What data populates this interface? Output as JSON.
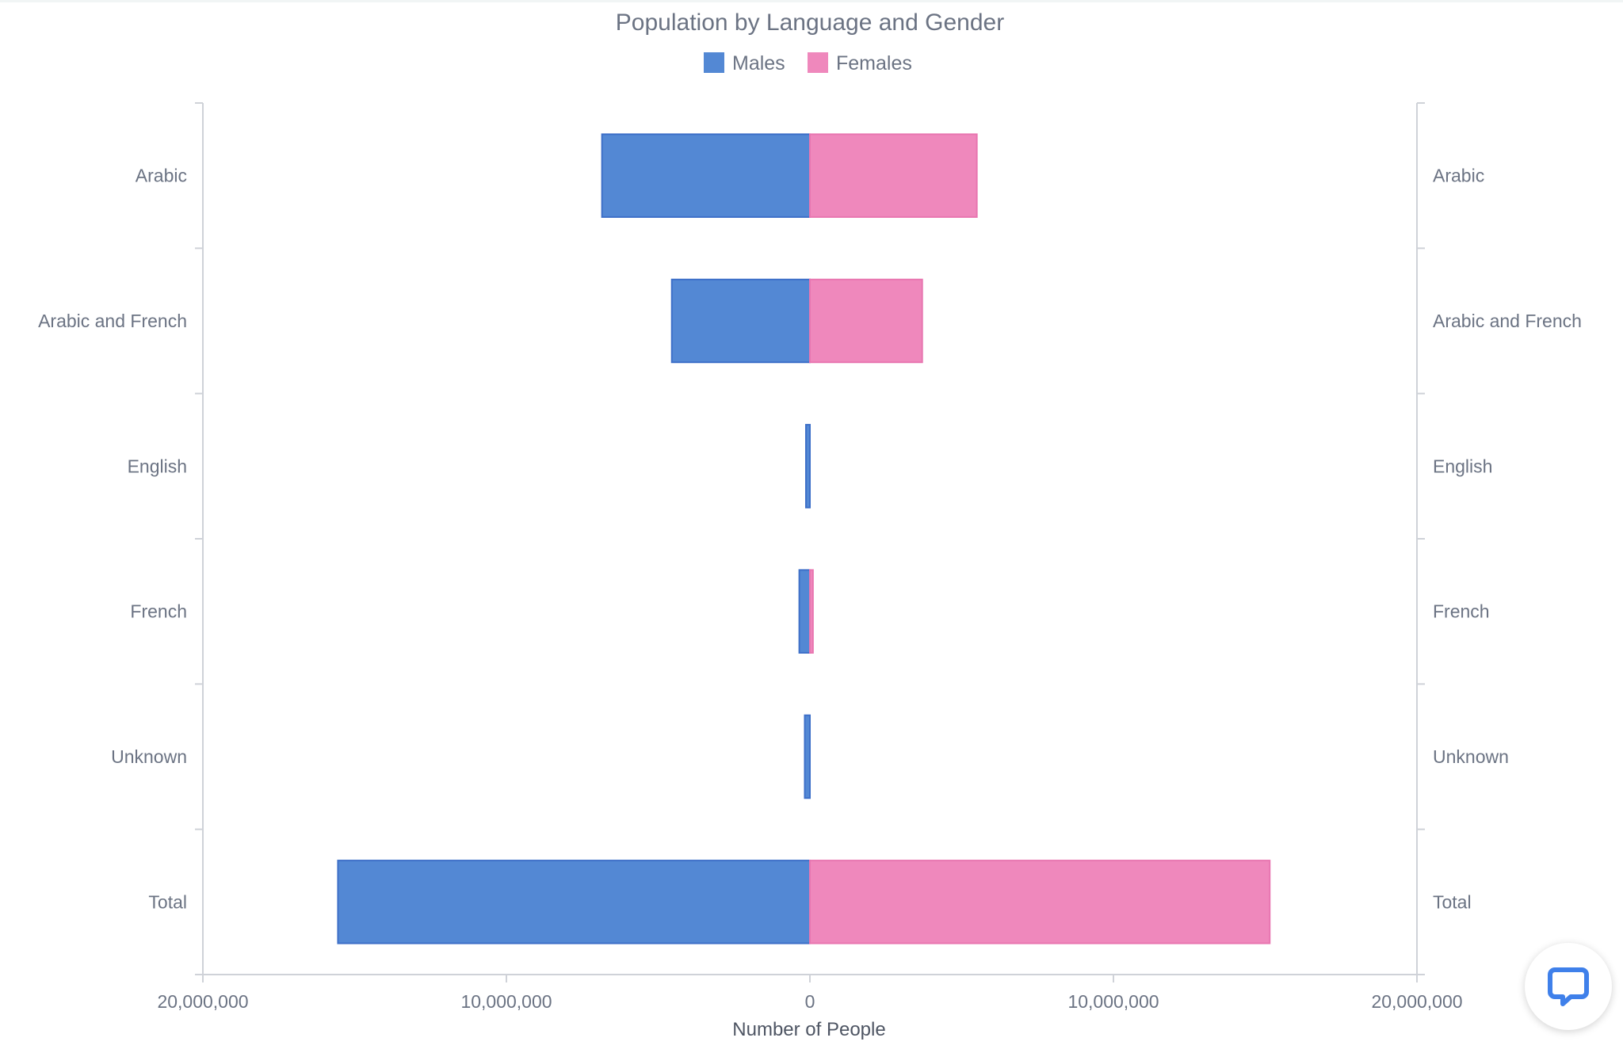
{
  "chart_data": {
    "type": "bar",
    "orientation": "horizontal-diverging",
    "title": "Population by Language and Gender",
    "xlabel": "Number of People",
    "ylabel": "",
    "categories": [
      "Arabic",
      "Arabic and French",
      "English",
      "French",
      "Unknown",
      "Total"
    ],
    "series": [
      {
        "name": "Males",
        "color": "#5388d4",
        "values": [
          6850000,
          4550000,
          130000,
          350000,
          170000,
          15550000
        ]
      },
      {
        "name": "Females",
        "color": "#ef88bc",
        "values": [
          5500000,
          3700000,
          0,
          100000,
          0,
          15150000
        ]
      }
    ],
    "xlim": [
      -20000000,
      20000000
    ],
    "xticks": [
      -20000000,
      -10000000,
      0,
      10000000,
      20000000
    ],
    "xtick_labels": [
      "20,000,000",
      "10,000,000",
      "0",
      "10,000,000",
      "20,000,000"
    ],
    "grid": false,
    "legend_position": "top-center",
    "y_labels_both_sides": true
  },
  "colors": {
    "males": "#5388d4",
    "males_border": "#3d6fc8",
    "females": "#ef88bc",
    "females_border": "#e876b0",
    "text": "#6b7383",
    "axis": "#cfd2d8",
    "chat_icon": "#3f80ea"
  },
  "widgets": {
    "chat_icon": "chat-bubble-icon"
  }
}
